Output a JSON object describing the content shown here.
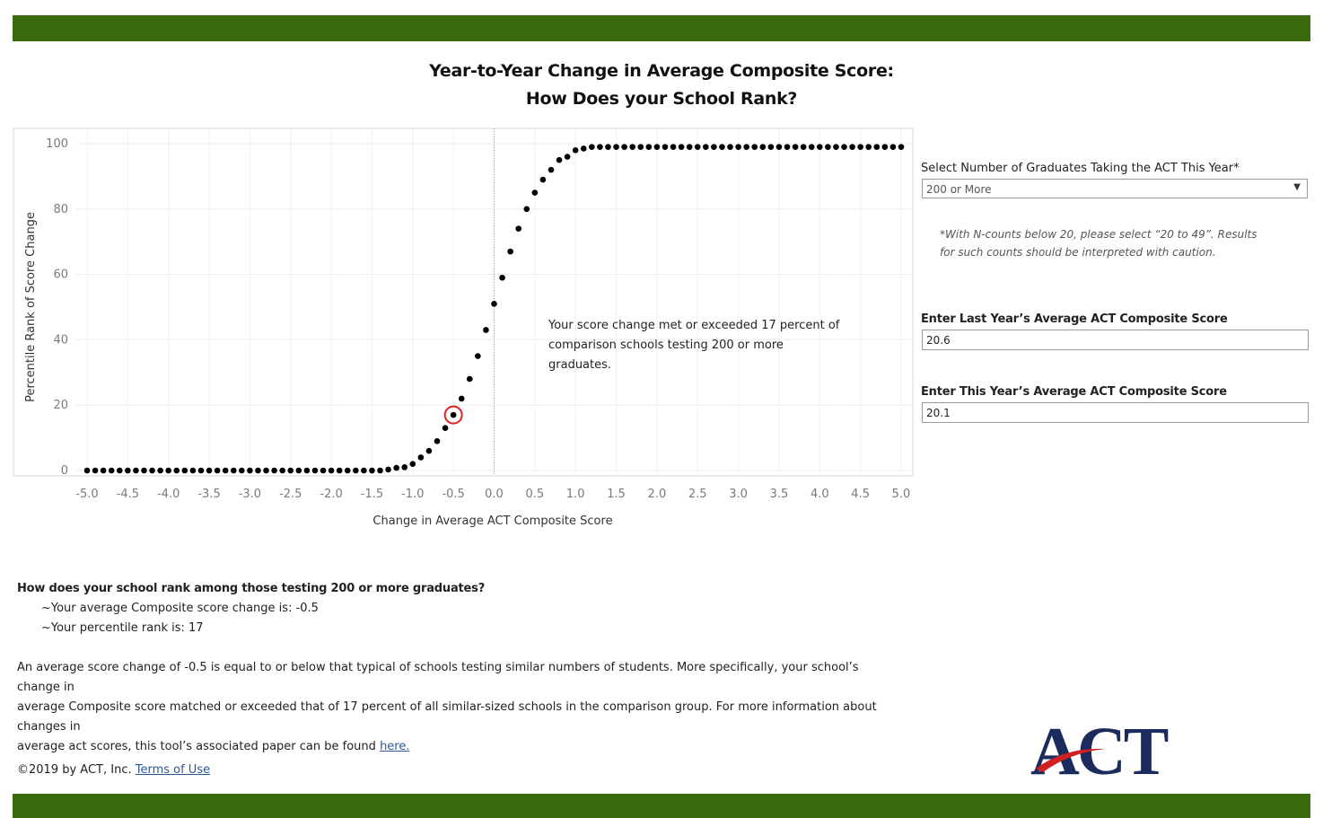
{
  "header": {
    "title_line1": "Year-to-Year Change in Average Composite Score:",
    "title_line2": "How Does your School Rank?"
  },
  "chart_data": {
    "type": "scatter",
    "xlabel": "Change in Average ACT Composite Score",
    "ylabel": "Percentile Rank of Score Change",
    "xlim": [
      -5.0,
      5.0
    ],
    "ylim": [
      0,
      100
    ],
    "x_ticks": [
      "-5.0",
      "-4.5",
      "-4.0",
      "-3.5",
      "-3.0",
      "-2.5",
      "-2.0",
      "-1.5",
      "-1.0",
      "-0.5",
      "0.0",
      "0.5",
      "1.0",
      "1.5",
      "2.0",
      "2.5",
      "3.0",
      "3.5",
      "4.0",
      "4.5",
      "5.0"
    ],
    "y_ticks": [
      "0",
      "20",
      "40",
      "60",
      "80",
      "100"
    ],
    "grid": true,
    "reference_line_x": 0.0,
    "points": [
      {
        "x": -5.0,
        "y": 0
      },
      {
        "x": -4.9,
        "y": 0
      },
      {
        "x": -4.8,
        "y": 0
      },
      {
        "x": -4.7,
        "y": 0
      },
      {
        "x": -4.6,
        "y": 0
      },
      {
        "x": -4.5,
        "y": 0
      },
      {
        "x": -4.4,
        "y": 0
      },
      {
        "x": -4.3,
        "y": 0
      },
      {
        "x": -4.2,
        "y": 0
      },
      {
        "x": -4.1,
        "y": 0
      },
      {
        "x": -4.0,
        "y": 0
      },
      {
        "x": -3.9,
        "y": 0
      },
      {
        "x": -3.8,
        "y": 0
      },
      {
        "x": -3.7,
        "y": 0
      },
      {
        "x": -3.6,
        "y": 0
      },
      {
        "x": -3.5,
        "y": 0
      },
      {
        "x": -3.4,
        "y": 0
      },
      {
        "x": -3.3,
        "y": 0
      },
      {
        "x": -3.2,
        "y": 0
      },
      {
        "x": -3.1,
        "y": 0
      },
      {
        "x": -3.0,
        "y": 0
      },
      {
        "x": -2.9,
        "y": 0
      },
      {
        "x": -2.8,
        "y": 0
      },
      {
        "x": -2.7,
        "y": 0
      },
      {
        "x": -2.6,
        "y": 0
      },
      {
        "x": -2.5,
        "y": 0
      },
      {
        "x": -2.4,
        "y": 0
      },
      {
        "x": -2.3,
        "y": 0
      },
      {
        "x": -2.2,
        "y": 0
      },
      {
        "x": -2.1,
        "y": 0
      },
      {
        "x": -2.0,
        "y": 0
      },
      {
        "x": -1.9,
        "y": 0
      },
      {
        "x": -1.8,
        "y": 0
      },
      {
        "x": -1.7,
        "y": 0
      },
      {
        "x": -1.6,
        "y": 0
      },
      {
        "x": -1.5,
        "y": 0
      },
      {
        "x": -1.4,
        "y": 0
      },
      {
        "x": -1.3,
        "y": 0.3
      },
      {
        "x": -1.2,
        "y": 0.8
      },
      {
        "x": -1.1,
        "y": 1
      },
      {
        "x": -1.0,
        "y": 2
      },
      {
        "x": -0.9,
        "y": 4
      },
      {
        "x": -0.8,
        "y": 6
      },
      {
        "x": -0.7,
        "y": 9
      },
      {
        "x": -0.6,
        "y": 13
      },
      {
        "x": -0.5,
        "y": 17
      },
      {
        "x": -0.4,
        "y": 22
      },
      {
        "x": -0.3,
        "y": 28
      },
      {
        "x": -0.2,
        "y": 35
      },
      {
        "x": -0.1,
        "y": 43
      },
      {
        "x": 0.0,
        "y": 51
      },
      {
        "x": 0.1,
        "y": 59
      },
      {
        "x": 0.2,
        "y": 67
      },
      {
        "x": 0.3,
        "y": 74
      },
      {
        "x": 0.4,
        "y": 80
      },
      {
        "x": 0.5,
        "y": 85
      },
      {
        "x": 0.6,
        "y": 89
      },
      {
        "x": 0.7,
        "y": 92
      },
      {
        "x": 0.8,
        "y": 95
      },
      {
        "x": 0.9,
        "y": 96
      },
      {
        "x": 1.0,
        "y": 98
      },
      {
        "x": 1.1,
        "y": 98.5
      },
      {
        "x": 1.2,
        "y": 99
      },
      {
        "x": 1.3,
        "y": 99
      },
      {
        "x": 1.4,
        "y": 99
      },
      {
        "x": 1.5,
        "y": 99
      },
      {
        "x": 1.6,
        "y": 99
      },
      {
        "x": 1.7,
        "y": 99
      },
      {
        "x": 1.8,
        "y": 99
      },
      {
        "x": 1.9,
        "y": 99
      },
      {
        "x": 2.0,
        "y": 99
      },
      {
        "x": 2.1,
        "y": 99
      },
      {
        "x": 2.2,
        "y": 99
      },
      {
        "x": 2.3,
        "y": 99
      },
      {
        "x": 2.4,
        "y": 99
      },
      {
        "x": 2.5,
        "y": 99
      },
      {
        "x": 2.6,
        "y": 99
      },
      {
        "x": 2.7,
        "y": 99
      },
      {
        "x": 2.8,
        "y": 99
      },
      {
        "x": 2.9,
        "y": 99
      },
      {
        "x": 3.0,
        "y": 99
      },
      {
        "x": 3.1,
        "y": 99
      },
      {
        "x": 3.2,
        "y": 99
      },
      {
        "x": 3.3,
        "y": 99
      },
      {
        "x": 3.4,
        "y": 99
      },
      {
        "x": 3.5,
        "y": 99
      },
      {
        "x": 3.6,
        "y": 99
      },
      {
        "x": 3.7,
        "y": 99
      },
      {
        "x": 3.8,
        "y": 99
      },
      {
        "x": 3.9,
        "y": 99
      },
      {
        "x": 4.0,
        "y": 99
      },
      {
        "x": 4.1,
        "y": 99
      },
      {
        "x": 4.2,
        "y": 99
      },
      {
        "x": 4.3,
        "y": 99
      },
      {
        "x": 4.4,
        "y": 99
      },
      {
        "x": 4.5,
        "y": 99
      },
      {
        "x": 4.6,
        "y": 99
      },
      {
        "x": 4.7,
        "y": 99
      },
      {
        "x": 4.8,
        "y": 99
      },
      {
        "x": 4.9,
        "y": 99
      },
      {
        "x": 5.0,
        "y": 99
      }
    ],
    "highlight_point": {
      "x": -0.5,
      "y": 17
    },
    "highlight_color": "#e02020",
    "point_color": "#000000",
    "annotation_lines": [
      "Your score change met or exceeded 17 percent of",
      "comparison schools testing 200 or more",
      "graduates."
    ]
  },
  "controls": {
    "graduates_label": "Select Number of Graduates Taking the ACT This Year*",
    "graduates_value": "200 or More",
    "note_line1": "*With N-counts below 20, please select “20 to 49”.  Results",
    "note_line2": "for such counts should be interpreted with caution.",
    "last_year_label": "Enter Last Year’s Average ACT Composite Score",
    "last_year_value": "20.6",
    "this_year_label": "Enter This Year’s Average ACT Composite Score",
    "this_year_value": "20.1"
  },
  "results": {
    "question": "How does your school rank among those testing 200 or more  graduates?",
    "score_change": "~Your average Composite score change is: -0.5",
    "percentile": "~Your percentile rank is: 17",
    "para_line1": "An average score change of -0.5 is equal to or below that typical of schools testing similar numbers of students. More specifically, your school’s change in",
    "para_line2": "average Composite score matched or exceeded that of 17 percent of all similar-sized schools in the comparison group. For more information about changes in",
    "para_line3": "average act scores, this tool’s associated paper can be found ",
    "para_link": "here."
  },
  "footer": {
    "copyright": "©2019 by ACT, Inc. ",
    "terms_link": "Terms of Use",
    "logo_text": "ACT"
  },
  "colors": {
    "band": "#396b0c",
    "logo_navy": "#1a2b5c",
    "logo_swoosh": "#d0201f",
    "link": "#2b5797"
  }
}
